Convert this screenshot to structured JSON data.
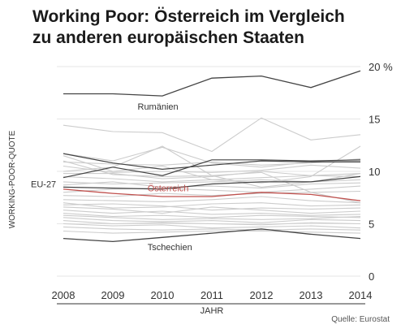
{
  "title_line1": "Working Poor: Österreich im Vergleich",
  "title_line2": "zu anderen europäischen Staaten",
  "source": "Quelle: Eurostat",
  "chart_data": {
    "type": "line",
    "title": "Working Poor: Österreich im Vergleich zu anderen europäischen Staaten",
    "xlabel": "JAHR",
    "ylabel": "WORKING-POOR-QUOTE",
    "x": [
      2008,
      2009,
      2010,
      2011,
      2012,
      2013,
      2014
    ],
    "x_ticks": [
      "2008",
      "2009",
      "2010",
      "2011",
      "2012",
      "2013",
      "2014"
    ],
    "y_ticks": [
      {
        "value": 0,
        "label": "0"
      },
      {
        "value": 5,
        "label": "5"
      },
      {
        "value": 10,
        "label": "10"
      },
      {
        "value": 15,
        "label": "15"
      },
      {
        "value": 20,
        "label": "20 %"
      }
    ],
    "ylim": [
      0,
      20
    ],
    "grid": "horizontal",
    "colors": {
      "highlight": "#444444",
      "austria": "#c0504d",
      "background_series": "#cccccc",
      "grid": "#e6e6e6",
      "axis": "#333333",
      "text": "#333333"
    },
    "highlighted_series": [
      {
        "name": "Rumänien",
        "values": [
          17.4,
          17.4,
          17.2,
          18.9,
          19.1,
          18.0,
          19.6
        ],
        "role": "highlight"
      },
      {
        "name": "EU-27",
        "values": [
          8.5,
          8.4,
          8.3,
          8.8,
          9.0,
          9.0,
          9.5
        ],
        "role": "highlight"
      },
      {
        "name": "Österreich",
        "values": [
          8.3,
          7.9,
          7.6,
          7.6,
          8.0,
          7.8,
          7.2
        ],
        "role": "austria"
      },
      {
        "name": "Tschechien",
        "values": [
          3.6,
          3.3,
          3.7,
          4.1,
          4.5,
          4.0,
          3.6
        ],
        "role": "highlight"
      }
    ],
    "highlight_labels": [
      {
        "text": "Rumänien",
        "at_x": 2009.5,
        "y": 16.2
      },
      {
        "text": "Österreich",
        "at_x": 2009.7,
        "y": 8.4
      },
      {
        "text": "Tschechien",
        "at_x": 2009.7,
        "y": 2.8
      },
      {
        "text": "EU-27",
        "y": 8.8
      }
    ],
    "extra_highlight_series": [
      {
        "values": [
          9.4,
          10.4,
          9.6,
          11.1,
          11.1,
          11.0,
          11.1
        ]
      },
      {
        "values": [
          11.7,
          10.8,
          10.2,
          10.6,
          11.0,
          10.9,
          10.9
        ]
      }
    ],
    "background_series": [
      {
        "values": [
          14.4,
          13.8,
          13.7,
          11.9,
          15.1,
          13.0,
          13.5
        ]
      },
      {
        "values": [
          11.7,
          11.0,
          12.3,
          10.8,
          10.4,
          10.9,
          11.0
        ]
      },
      {
        "values": [
          10.9,
          10.7,
          10.6,
          10.9,
          10.6,
          10.8,
          11.2
        ]
      },
      {
        "values": [
          10.5,
          9.9,
          10.0,
          9.9,
          10.1,
          10.6,
          10.3
        ]
      },
      {
        "values": [
          9.8,
          9.8,
          9.3,
          9.5,
          10.0,
          9.6,
          9.5
        ]
      },
      {
        "values": [
          9.5,
          9.3,
          9.0,
          9.2,
          9.4,
          9.6,
          9.8
        ]
      },
      {
        "values": [
          9.0,
          8.8,
          8.9,
          9.0,
          9.2,
          9.0,
          9.2
        ]
      },
      {
        "values": [
          8.7,
          9.0,
          8.5,
          8.6,
          8.4,
          8.8,
          8.9
        ]
      },
      {
        "values": [
          8.0,
          8.3,
          8.4,
          8.2,
          8.0,
          8.3,
          8.6
        ]
      },
      {
        "values": [
          7.7,
          7.6,
          7.9,
          7.7,
          7.9,
          8.0,
          8.1
        ]
      },
      {
        "values": [
          7.3,
          7.2,
          7.1,
          7.3,
          7.6,
          7.2,
          7.0
        ]
      },
      {
        "values": [
          7.0,
          6.5,
          6.6,
          6.9,
          7.0,
          6.7,
          6.8
        ]
      },
      {
        "values": [
          6.8,
          6.9,
          6.7,
          6.3,
          6.5,
          6.4,
          6.5
        ]
      },
      {
        "values": [
          6.6,
          6.4,
          6.0,
          6.6,
          6.3,
          6.0,
          6.2
        ]
      },
      {
        "values": [
          6.3,
          6.0,
          6.2,
          5.9,
          6.0,
          5.8,
          5.9
        ]
      },
      {
        "values": [
          6.0,
          5.7,
          5.8,
          5.6,
          5.8,
          5.7,
          5.6
        ]
      },
      {
        "values": [
          5.8,
          5.6,
          5.4,
          5.5,
          5.4,
          5.5,
          5.7
        ]
      },
      {
        "values": [
          5.6,
          5.3,
          5.2,
          5.3,
          5.1,
          5.4,
          5.3
        ]
      },
      {
        "values": [
          5.3,
          5.0,
          5.1,
          5.0,
          4.9,
          5.1,
          5.0
        ]
      },
      {
        "values": [
          5.0,
          4.8,
          4.9,
          4.6,
          4.7,
          4.8,
          4.6
        ]
      },
      {
        "values": [
          4.7,
          4.5,
          4.4,
          4.5,
          4.4,
          4.5,
          4.4
        ]
      },
      {
        "values": [
          4.3,
          4.1,
          4.2,
          4.3,
          4.3,
          4.2,
          4.1
        ]
      },
      {
        "values": [
          10.0,
          10.4,
          12.4,
          9.6,
          8.5,
          9.0,
          9.8
        ]
      },
      {
        "values": [
          11.0,
          9.7,
          9.5,
          9.6,
          9.9,
          8.0,
          7.0
        ]
      },
      {
        "values": [
          11.5,
          10.0,
          10.5,
          9.2,
          8.9,
          9.5,
          12.4
        ]
      }
    ]
  }
}
